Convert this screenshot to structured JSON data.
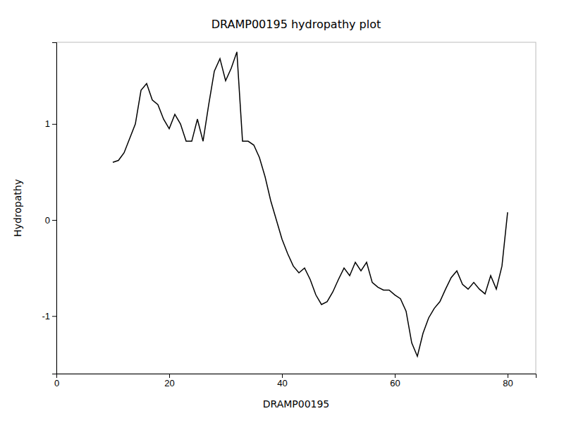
{
  "chart_data": {
    "type": "line",
    "title": "DRAMP00195 hydropathy plot",
    "xlabel": "DRAMP00195",
    "ylabel": "Hydropathy",
    "color": "#000000",
    "xlim": [
      0,
      85
    ],
    "ylim": [
      -1.6,
      1.85
    ],
    "xticks": [
      0,
      20,
      40,
      60,
      80
    ],
    "yticks": [
      -1,
      0,
      1
    ],
    "x": [
      10,
      11,
      12,
      13,
      14,
      15,
      16,
      17,
      18,
      19,
      20,
      21,
      22,
      23,
      24,
      25,
      26,
      27,
      28,
      29,
      30,
      31,
      32,
      33,
      34,
      35,
      36,
      37,
      38,
      39,
      40,
      41,
      42,
      43,
      44,
      45,
      46,
      47,
      48,
      49,
      50,
      51,
      52,
      53,
      54,
      55,
      56,
      57,
      58,
      59,
      60,
      61,
      62,
      63,
      64,
      65,
      66,
      67,
      68,
      69,
      70,
      71,
      72,
      73,
      74,
      75,
      76,
      77,
      78,
      79,
      80
    ],
    "values": [
      0.6,
      0.62,
      0.7,
      0.85,
      1.0,
      1.35,
      1.42,
      1.25,
      1.2,
      1.05,
      0.95,
      1.1,
      1.0,
      0.82,
      0.82,
      1.05,
      0.82,
      1.2,
      1.55,
      1.68,
      1.45,
      1.58,
      1.75,
      0.82,
      0.82,
      0.78,
      0.65,
      0.45,
      0.2,
      0.0,
      -0.2,
      -0.35,
      -0.48,
      -0.55,
      -0.5,
      -0.62,
      -0.78,
      -0.88,
      -0.85,
      -0.75,
      -0.62,
      -0.5,
      -0.58,
      -0.44,
      -0.53,
      -0.44,
      -0.65,
      -0.7,
      -0.73,
      -0.73,
      -0.78,
      -0.82,
      -0.95,
      -1.28,
      -1.42,
      -1.18,
      -1.02,
      -0.92,
      -0.85,
      -0.72,
      -0.6,
      -0.53,
      -0.67,
      -0.72,
      -0.65,
      -0.72,
      -0.77,
      -0.58,
      -0.72,
      -0.48,
      0.08
    ]
  }
}
